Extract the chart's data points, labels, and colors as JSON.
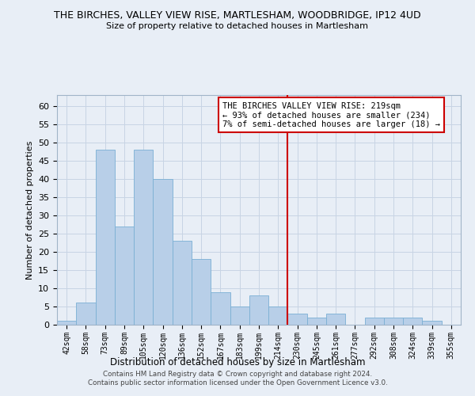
{
  "title1": "THE BIRCHES, VALLEY VIEW RISE, MARTLESHAM, WOODBRIDGE, IP12 4UD",
  "title2": "Size of property relative to detached houses in Martlesham",
  "xlabel": "Distribution of detached houses by size in Martlesham",
  "ylabel": "Number of detached properties",
  "categories": [
    "42sqm",
    "58sqm",
    "73sqm",
    "89sqm",
    "105sqm",
    "120sqm",
    "136sqm",
    "152sqm",
    "167sqm",
    "183sqm",
    "199sqm",
    "214sqm",
    "230sqm",
    "245sqm",
    "261sqm",
    "277sqm",
    "292sqm",
    "308sqm",
    "324sqm",
    "339sqm",
    "355sqm"
  ],
  "values": [
    1,
    6,
    48,
    27,
    48,
    40,
    23,
    18,
    9,
    5,
    8,
    5,
    3,
    2,
    3,
    0,
    2,
    2,
    2,
    1,
    0
  ],
  "bar_color": "#b8cfe8",
  "bar_edge_color": "#7aafd4",
  "vline_x": 11.5,
  "vline_color": "#cc0000",
  "annotation_text": "THE BIRCHES VALLEY VIEW RISE: 219sqm\n← 93% of detached houses are smaller (234)\n7% of semi-detached houses are larger (18) →",
  "annotation_box_color": "#ffffff",
  "annotation_box_edge": "#cc0000",
  "ylim": [
    0,
    63
  ],
  "yticks": [
    0,
    5,
    10,
    15,
    20,
    25,
    30,
    35,
    40,
    45,
    50,
    55,
    60
  ],
  "grid_color": "#c8d4e4",
  "background_color": "#e8eef6",
  "footer_line1": "Contains HM Land Registry data © Crown copyright and database right 2024.",
  "footer_line2": "Contains public sector information licensed under the Open Government Licence v3.0."
}
